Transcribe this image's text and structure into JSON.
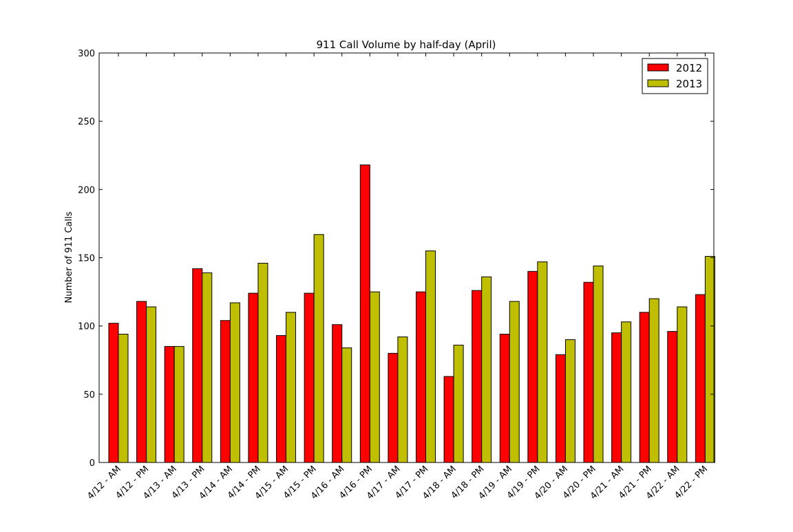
{
  "chart_data": {
    "type": "bar",
    "title": "911 Call Volume by half-day (April)",
    "xlabel": "",
    "ylabel": "Number of 911 Calls",
    "ylim": [
      0,
      300
    ],
    "yticks": [
      "0",
      "50",
      "100",
      "150",
      "200",
      "250",
      "300"
    ],
    "grid": false,
    "legend_position": "top-right",
    "categories": [
      "4/12 - AM",
      "4/12 - PM",
      "4/13 - AM",
      "4/13 - PM",
      "4/14 - AM",
      "4/14 - PM",
      "4/15 - AM",
      "4/15 - PM",
      "4/16 - AM",
      "4/16 - PM",
      "4/17 - AM",
      "4/17 - PM",
      "4/18 - AM",
      "4/18 - PM",
      "4/19 - AM",
      "4/19 - PM",
      "4/20 - AM",
      "4/20 - PM",
      "4/21 - AM",
      "4/21 - PM",
      "4/22 - AM",
      "4/22 - PM"
    ],
    "series": [
      {
        "name": "2012",
        "color": "#ff0000",
        "values": [
          102,
          118,
          85,
          142,
          104,
          124,
          93,
          124,
          101,
          218,
          80,
          125,
          63,
          126,
          94,
          140,
          79,
          132,
          95,
          110,
          96,
          123
        ]
      },
      {
        "name": "2013",
        "color": "#bfbf00",
        "values": [
          94,
          114,
          85,
          139,
          117,
          146,
          110,
          167,
          84,
          125,
          92,
          155,
          86,
          136,
          118,
          147,
          90,
          144,
          103,
          120,
          114,
          151
        ]
      }
    ]
  }
}
